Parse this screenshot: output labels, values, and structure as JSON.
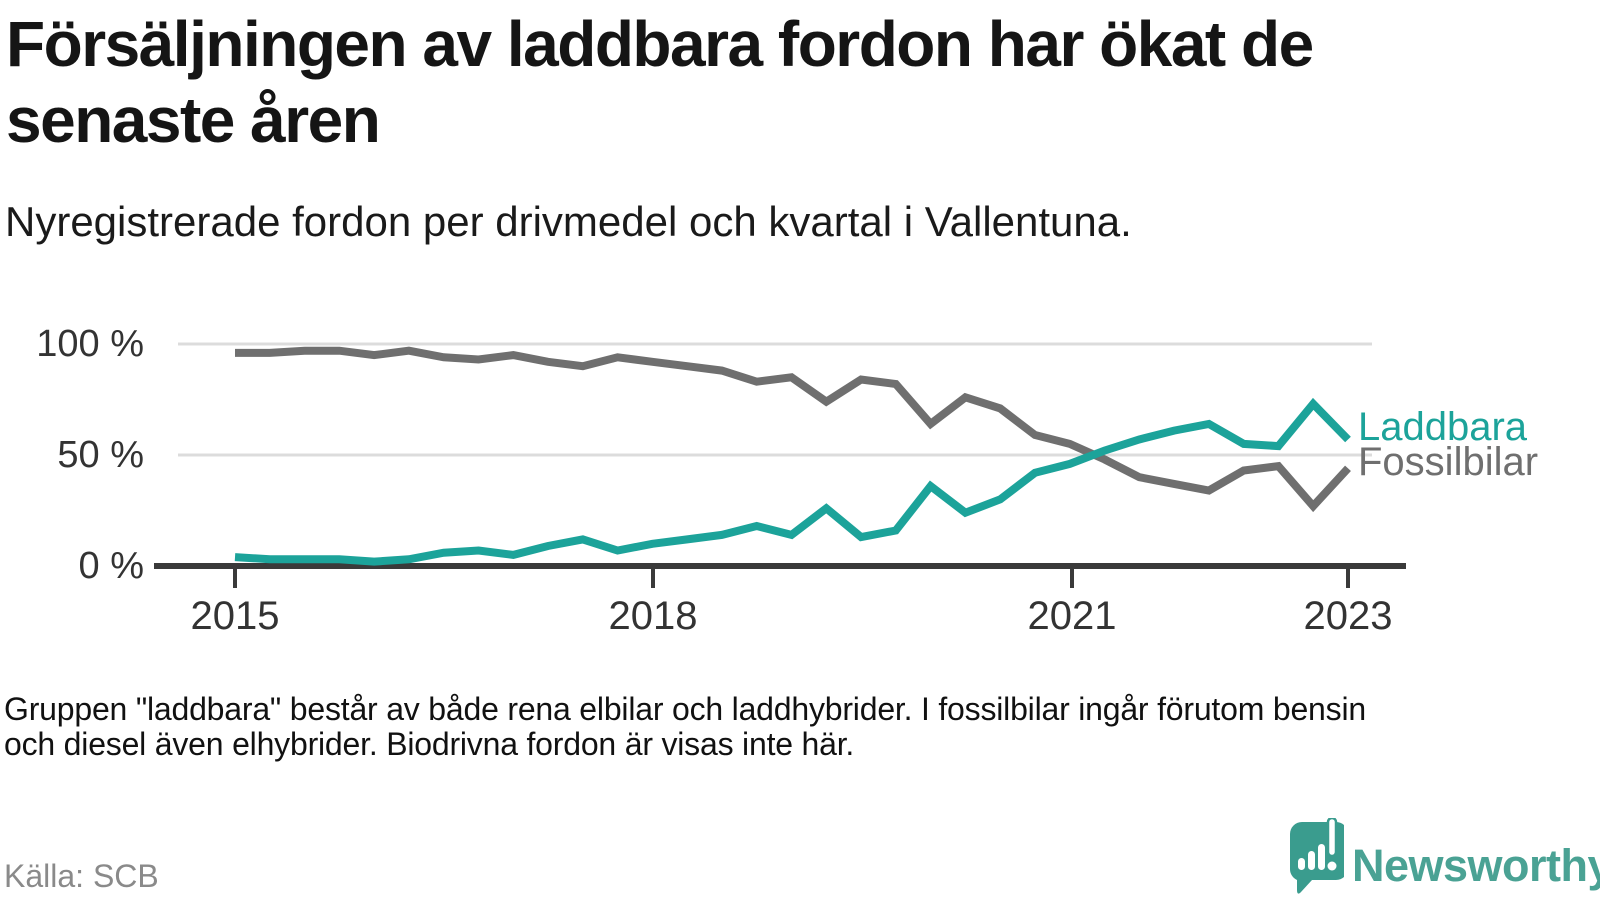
{
  "header": {
    "title_line1": "Försäljningen av laddbara fordon har ökat de",
    "title_line2": "senaste åren",
    "subtitle": "Nyregistrerade fordon per drivmedel och kvartal i Vallentuna."
  },
  "chart_data": {
    "type": "line",
    "title": "Försäljningen av laddbara fordon har ökat de senaste åren",
    "subtitle": "Nyregistrerade fordon per drivmedel och kvartal i Vallentuna.",
    "x_unit": "kvartal",
    "x_ticks": [
      "2015",
      "2018",
      "2021",
      "2023"
    ],
    "y_ticks": [
      "100 %",
      "50 %",
      "0 %"
    ],
    "ylim": [
      0,
      100
    ],
    "grid": "horizontal",
    "legend_position": "right-of-line-ends",
    "x_range_quarters": 33,
    "series": [
      {
        "name": "Fossilbilar",
        "color": "#6F6F6F",
        "values": [
          96,
          96,
          97,
          97,
          95,
          97,
          94,
          93,
          95,
          92,
          90,
          94,
          92,
          90,
          88,
          83,
          85,
          74,
          84,
          82,
          64,
          76,
          71,
          59,
          55,
          48,
          40,
          37,
          34,
          43,
          45,
          27,
          44
        ]
      },
      {
        "name": "Laddbara",
        "color": "#1CA39A",
        "values": [
          4,
          3,
          3,
          3,
          2,
          3,
          6,
          7,
          5,
          9,
          12,
          7,
          10,
          12,
          14,
          18,
          14,
          26,
          13,
          16,
          36,
          24,
          30,
          42,
          46,
          52,
          57,
          61,
          64,
          55,
          54,
          73,
          57
        ]
      }
    ]
  },
  "footnote": {
    "line1": "Gruppen \"laddbara\" består av både rena elbilar och laddhybrider. I fossilbilar ingår förutom bensin",
    "line2": "och diesel även elhybrider. Biodrivna fordon är visas inte här."
  },
  "source": "Källa: SCB",
  "logo": {
    "text": "Newsworthy",
    "color": "#4AA294",
    "mark_color": "#3A9C8E"
  }
}
